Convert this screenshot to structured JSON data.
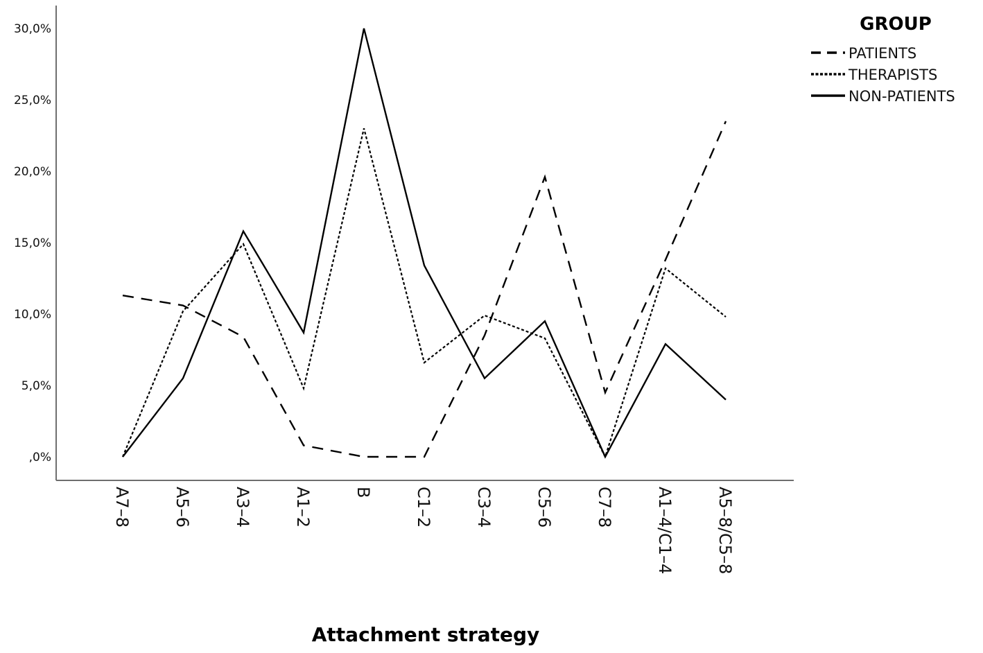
{
  "chart_data": {
    "type": "line",
    "title": "",
    "xlabel": "Attachment strategy",
    "ylabel": "",
    "categories": [
      "A7–8",
      "A5–6",
      "A3–4",
      "A1–2",
      "B",
      "C1–2",
      "C3–4",
      "C5–6",
      "C7–8",
      "A1–4/C1–4",
      "A5–8/C5–8"
    ],
    "y_ticks": [
      0,
      5,
      10,
      15,
      20,
      25,
      30
    ],
    "y_tick_labels": [
      ",0%",
      "5,0%",
      "10,0%",
      "15,0%",
      "20,0%",
      "25,0%",
      "30,0%"
    ],
    "ylim": [
      0,
      31
    ],
    "grid": false,
    "legend": {
      "title": "GROUP",
      "placement": "top-right"
    },
    "series": [
      {
        "name": "PATIENTS",
        "style": "dashed",
        "color": "#000000",
        "values": [
          11.3,
          10.6,
          8.4,
          0.8,
          0.0,
          0.0,
          8.5,
          19.6,
          4.5,
          13.8,
          23.5
        ]
      },
      {
        "name": "THERAPISTS",
        "style": "dotted",
        "color": "#000000",
        "values": [
          0.0,
          10.2,
          14.9,
          4.8,
          23.0,
          6.6,
          9.9,
          8.3,
          0.0,
          13.2,
          9.8
        ]
      },
      {
        "name": "NON-PATIENTS",
        "style": "solid",
        "color": "#000000",
        "values": [
          0.0,
          5.5,
          15.8,
          8.7,
          30.0,
          13.4,
          5.5,
          9.5,
          0.0,
          7.9,
          4.0
        ]
      }
    ]
  }
}
